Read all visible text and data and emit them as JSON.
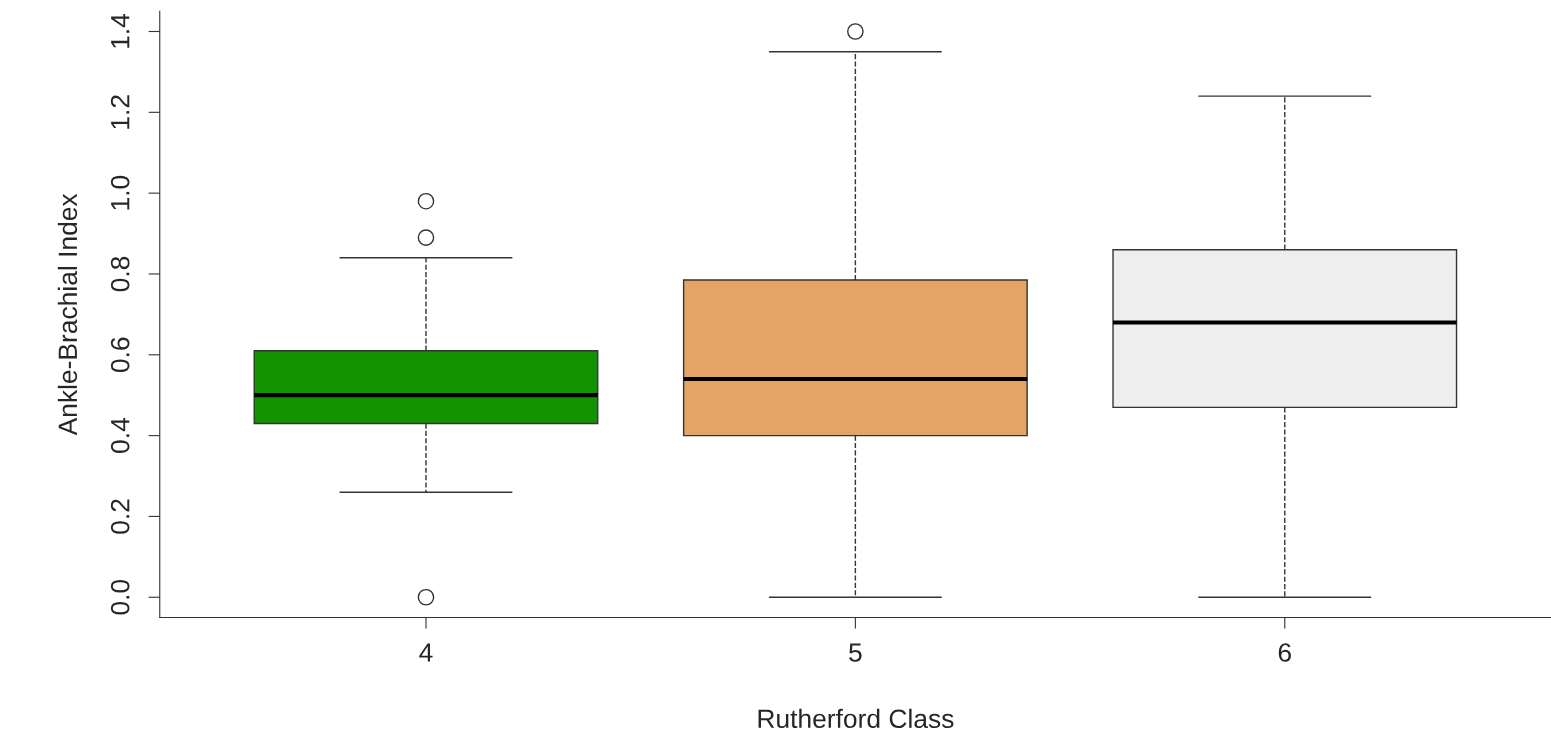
{
  "chart_data": {
    "type": "box",
    "xlabel": "Rutherford Class",
    "ylabel": "Ankle-Brachial Index",
    "categories": [
      "4",
      "5",
      "6"
    ],
    "colors": [
      "#129400",
      "#e4a465",
      "#eeeeee"
    ],
    "boxes": [
      {
        "low": 0.26,
        "q1": 0.43,
        "median": 0.5,
        "q3": 0.61,
        "high": 0.84,
        "outliers": [
          0.98,
          0.89,
          0.0
        ]
      },
      {
        "low": 0.0,
        "q1": 0.4,
        "median": 0.54,
        "q3": 0.785,
        "high": 1.35,
        "outliers": [
          1.4
        ]
      },
      {
        "low": 0.0,
        "q1": 0.47,
        "median": 0.68,
        "q3": 0.86,
        "high": 1.24
      }
    ],
    "ylim": [
      -0.05,
      1.45
    ],
    "yticks": [
      {
        "value": 0,
        "label": "0.0"
      },
      0.2,
      0.4,
      0.6,
      0.8,
      {
        "value": 1,
        "label": "1.0"
      },
      1.2,
      1.4
    ],
    "grid": false,
    "line_style": "dashed"
  }
}
